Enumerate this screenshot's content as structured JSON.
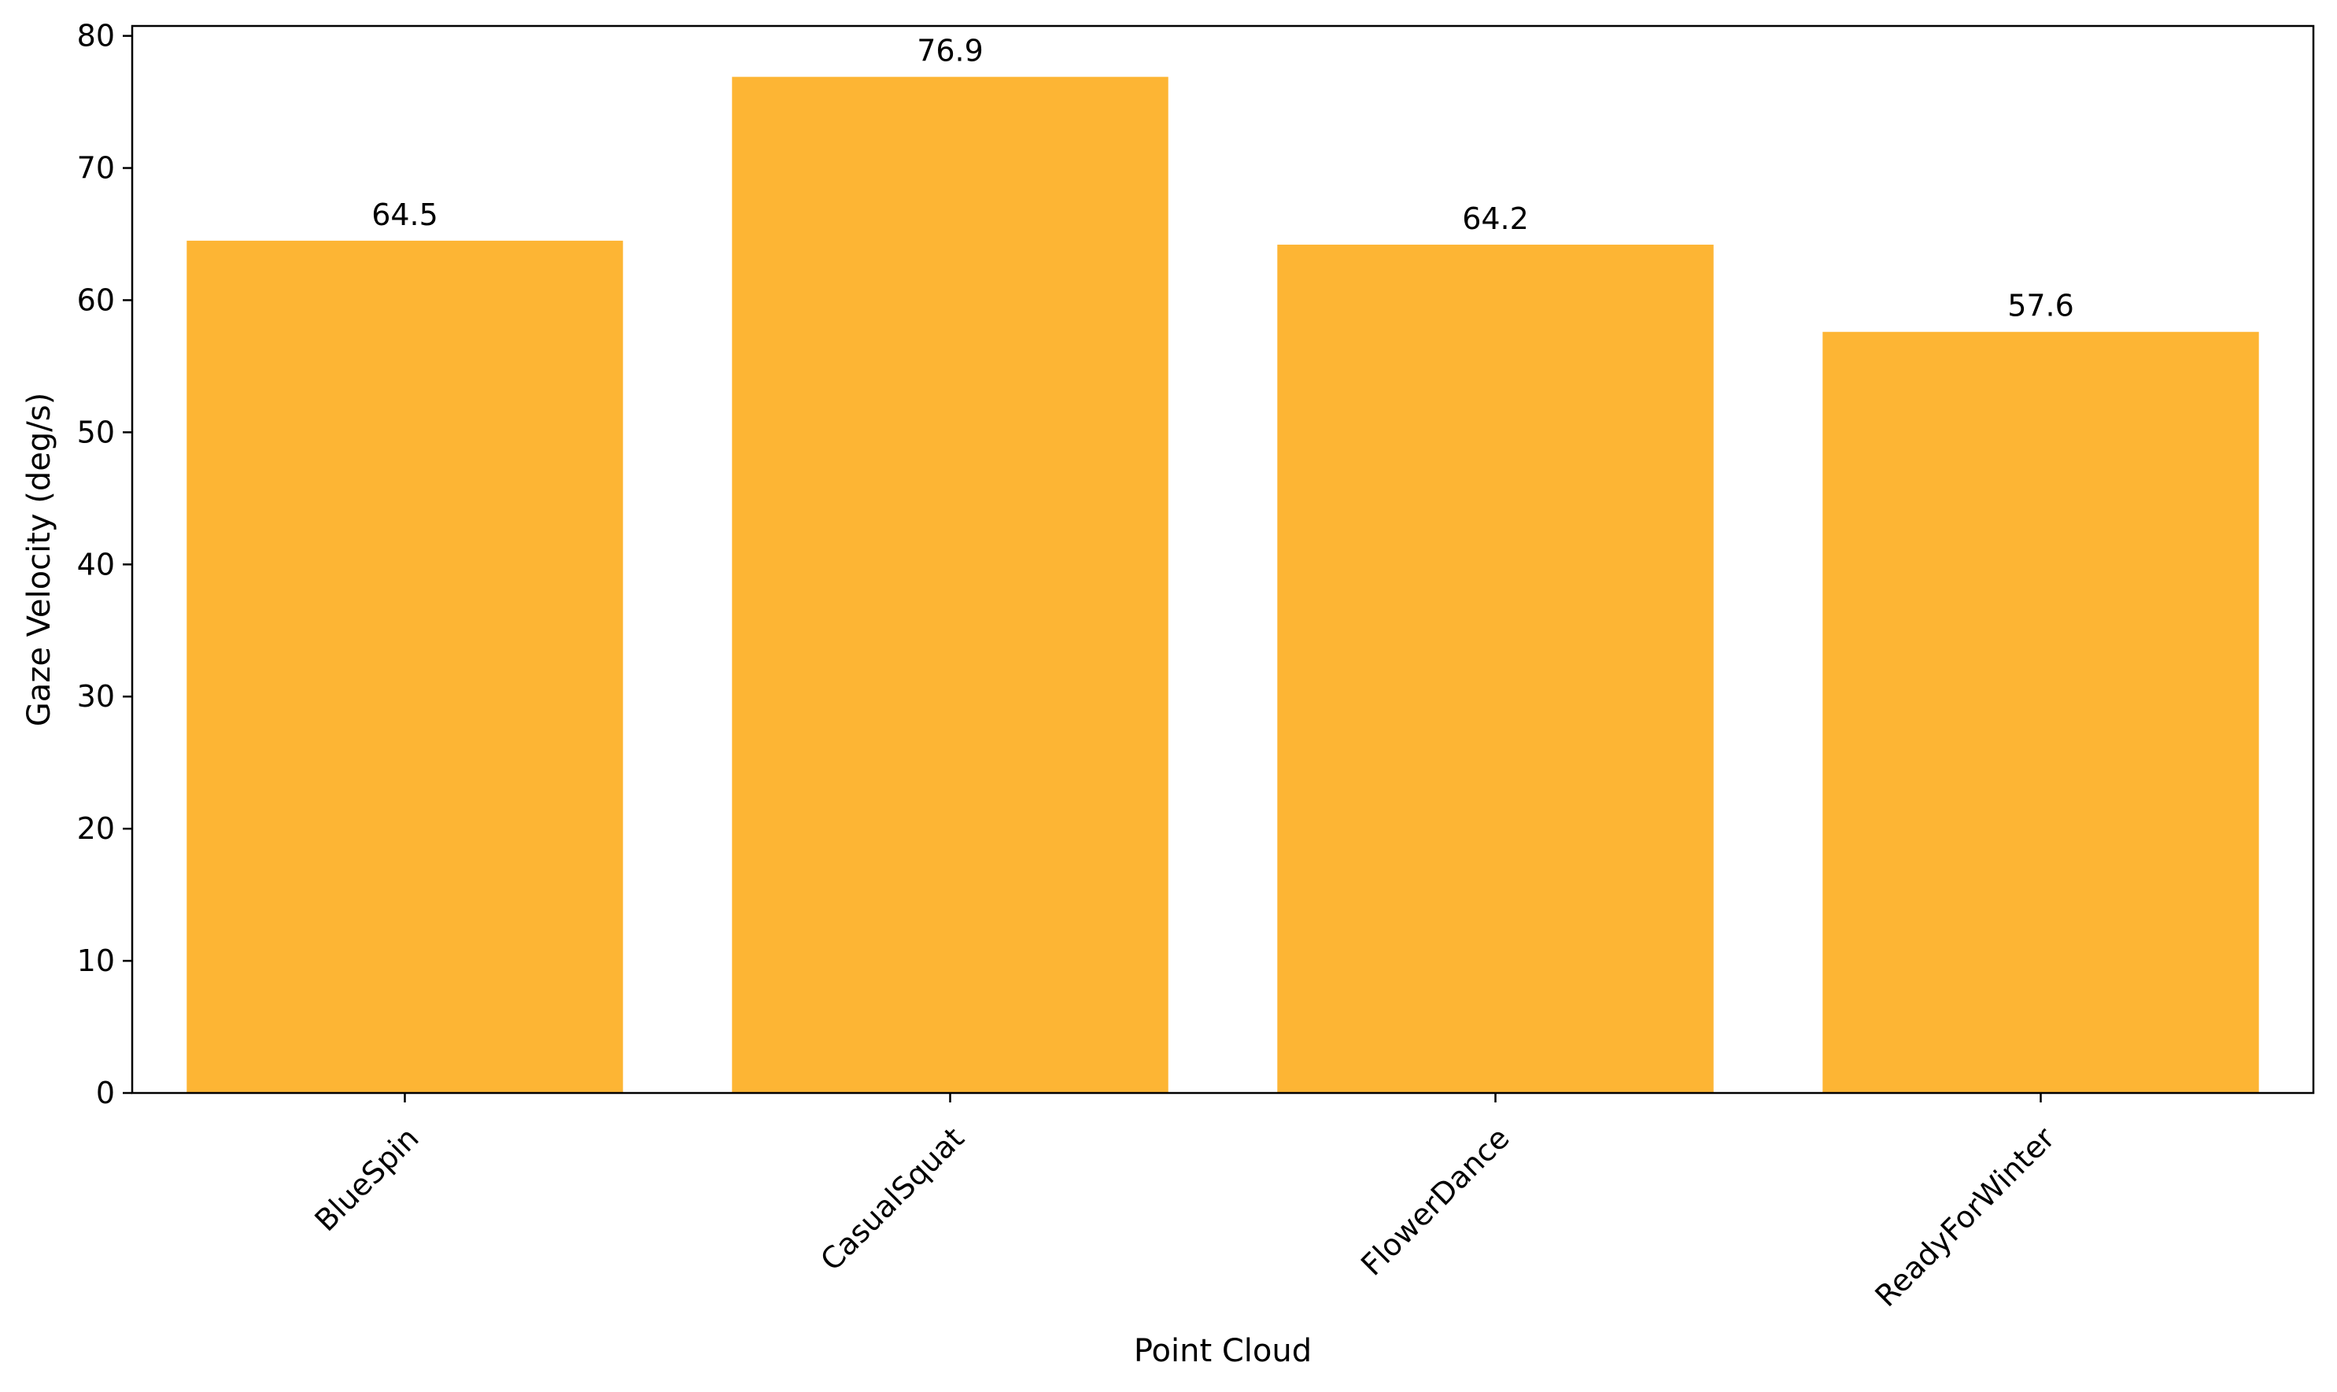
{
  "chart_data": {
    "type": "bar",
    "title": "",
    "xlabel": "Point Cloud",
    "ylabel": "Gaze Velocity (deg/s)",
    "categories": [
      "BlueSpin",
      "CasualSquat",
      "FlowerDance",
      "ReadyForWinter"
    ],
    "values": [
      64.5,
      76.9,
      64.2,
      57.6
    ],
    "value_labels": [
      "64.5",
      "76.9",
      "64.2",
      "57.6"
    ],
    "ylim": [
      0,
      80.75
    ],
    "yticks": [
      0,
      10,
      20,
      30,
      40,
      50,
      60,
      70,
      80
    ],
    "ytick_labels": [
      "0",
      "10",
      "20",
      "30",
      "40",
      "50",
      "60",
      "70",
      "80"
    ],
    "grid": false,
    "legend": "none",
    "bar_color": "#FDB534"
  }
}
